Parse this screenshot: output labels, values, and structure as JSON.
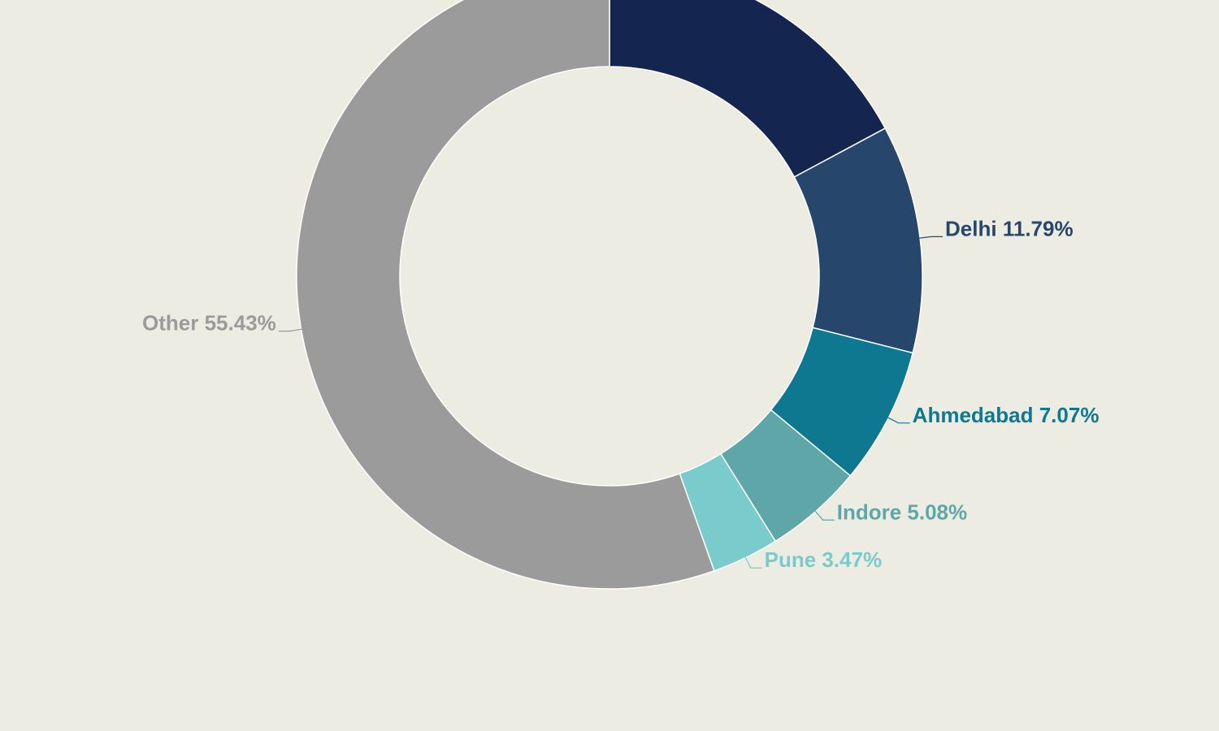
{
  "chart_data": {
    "type": "donut",
    "categories": [
      null,
      "Delhi",
      "Ahmedabad",
      "Indore",
      "Pune",
      "Other"
    ],
    "values": [
      17.16,
      11.79,
      7.07,
      5.08,
      3.47,
      55.43
    ],
    "value_labels": [
      null,
      "11.79%",
      "7.07%",
      "5.08%",
      "3.47%",
      "55.43%"
    ],
    "colors": [
      "#14254f",
      "#26476b",
      "#0e7891",
      "#5fa6a8",
      "#7acbcb",
      "#9b9b9b"
    ]
  }
}
